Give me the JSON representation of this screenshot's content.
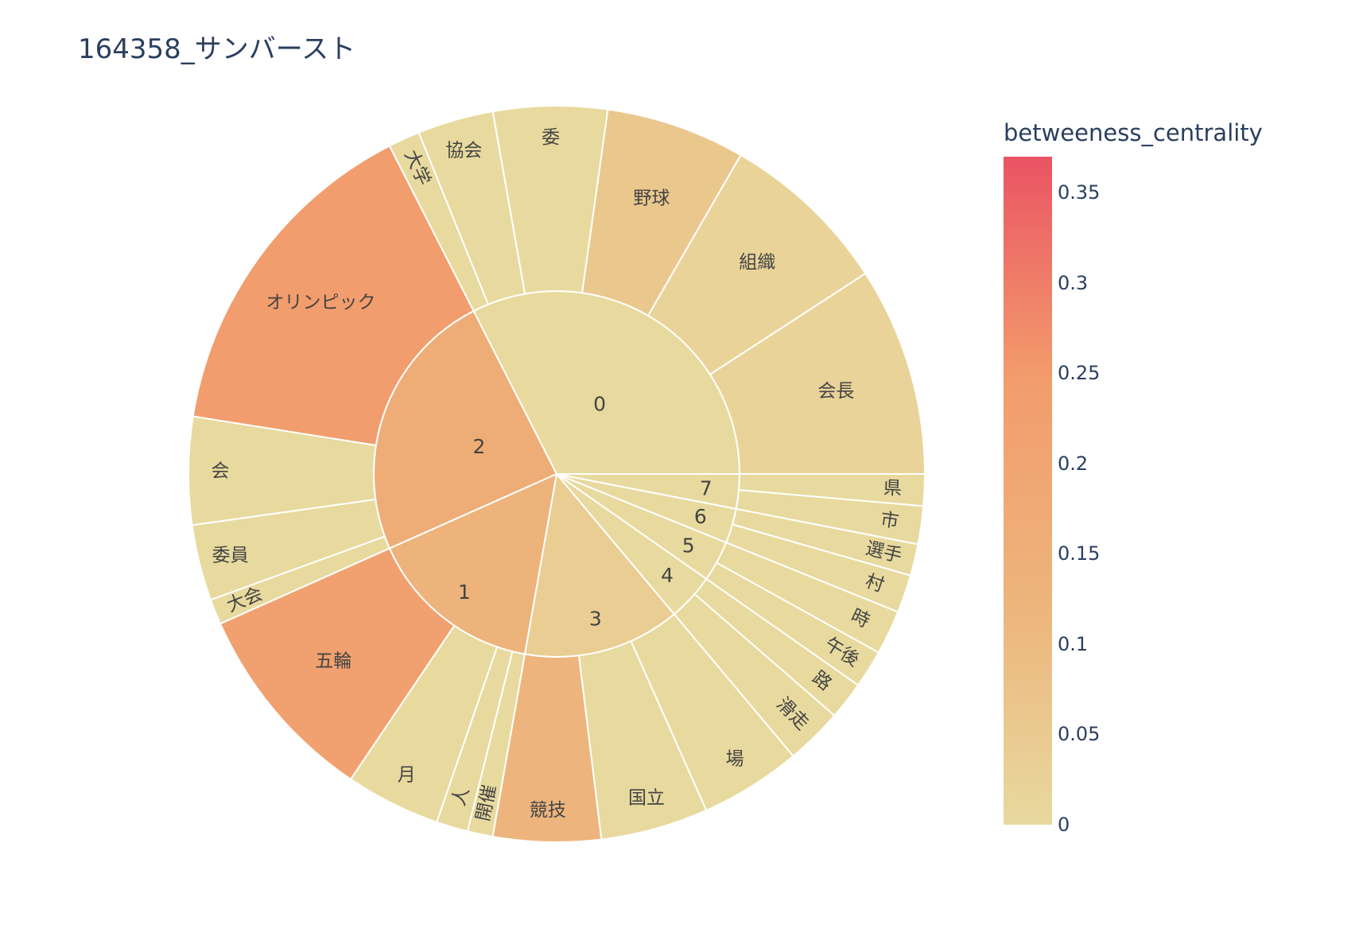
{
  "chart_data": {
    "type": "sunburst",
    "title": "164358_サンバースト",
    "colorbar": {
      "title": "betweeness_centrality",
      "range": [
        0,
        0.37
      ],
      "ticks": [
        "0",
        "0.05",
        "0.1",
        "0.15",
        "0.2",
        "0.25",
        "0.3",
        "0.35"
      ],
      "tick_values": [
        0,
        0.05,
        0.1,
        0.15,
        0.2,
        0.25,
        0.3,
        0.35
      ],
      "colors": [
        "#e8d99e",
        "#edb47c",
        "#f29c6c",
        "#ea5463"
      ]
    },
    "groups": [
      {
        "label": "0",
        "value": 0.0,
        "children": [
          {
            "label": "会長",
            "value": 0.02
          },
          {
            "label": "組織",
            "value": 0.02
          },
          {
            "label": "野球",
            "value": 0.06
          },
          {
            "label": "委",
            "value": 0.0
          },
          {
            "label": "協会",
            "value": 0.0
          },
          {
            "label": "大学",
            "value": 0.0
          }
        ]
      },
      {
        "label": "2",
        "value": 0.16,
        "children": [
          {
            "label": "オリンピック",
            "value": 0.24
          },
          {
            "label": "会",
            "value": 0.0
          },
          {
            "label": "委員",
            "value": 0.0
          },
          {
            "label": "大会",
            "value": 0.0
          }
        ]
      },
      {
        "label": "1",
        "value": 0.13,
        "children": [
          {
            "label": "五輪",
            "value": 0.22
          },
          {
            "label": "月",
            "value": 0.0
          },
          {
            "label": "人",
            "value": 0.0
          },
          {
            "label": "開催",
            "value": 0.0
          }
        ]
      },
      {
        "label": "3",
        "value": 0.04,
        "children": [
          {
            "label": "競技",
            "value": 0.12
          },
          {
            "label": "国立",
            "value": 0.0
          },
          {
            "label": "場",
            "value": 0.0
          }
        ]
      },
      {
        "label": "4",
        "value": 0.0,
        "children": [
          {
            "label": "滑走",
            "value": 0.0
          },
          {
            "label": "路",
            "value": 0.0
          }
        ]
      },
      {
        "label": "5",
        "value": 0.0,
        "children": [
          {
            "label": "午後",
            "value": 0.0
          },
          {
            "label": "時",
            "value": 0.0
          }
        ]
      },
      {
        "label": "6",
        "value": 0.0,
        "children": [
          {
            "label": "村",
            "value": 0.0
          },
          {
            "label": "選手",
            "value": 0.0
          }
        ]
      },
      {
        "label": "7",
        "value": 0.0,
        "children": [
          {
            "label": "市",
            "value": 0.0
          },
          {
            "label": "県",
            "value": 0.0
          }
        ]
      }
    ]
  }
}
